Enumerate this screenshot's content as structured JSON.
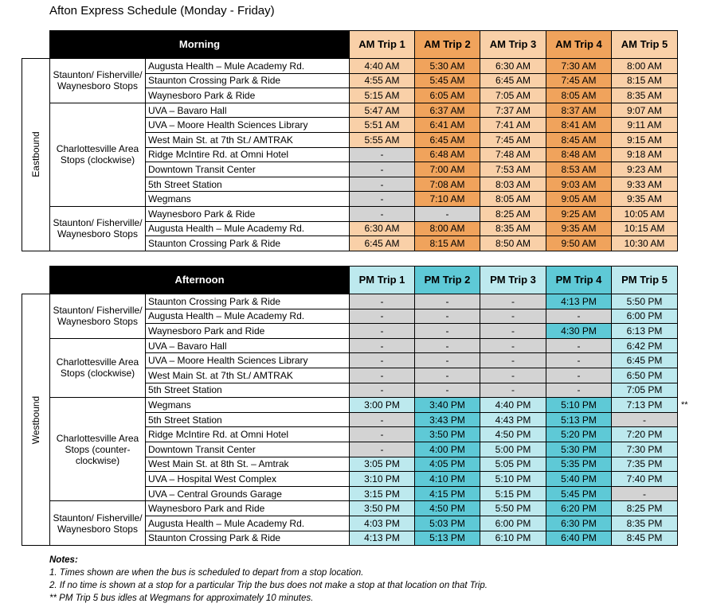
{
  "title": "Afton Express Schedule (Monday - Friday)",
  "tables": [
    {
      "direction": "Eastbound",
      "header": "Morning",
      "trips": [
        "AM Trip 1",
        "AM Trip 2",
        "AM Trip 3",
        "AM Trip 4",
        "AM Trip 5"
      ],
      "groups": [
        {
          "label": "Staunton/ Fisherville/ Waynesboro Stops",
          "rows": [
            {
              "stop": "Augusta Health – Mule Academy Rd.",
              "times": [
                "4:40 AM",
                "5:30 AM",
                "6:30 AM",
                "7:30 AM",
                "8:00 AM"
              ]
            },
            {
              "stop": "Staunton Crossing Park & Ride",
              "times": [
                "4:55 AM",
                "5:45 AM",
                "6:45 AM",
                "7:45 AM",
                "8:15 AM"
              ]
            },
            {
              "stop": "Waynesboro Park & Ride",
              "times": [
                "5:15 AM",
                "6:05 AM",
                "7:05 AM",
                "8:05 AM",
                "8:35 AM"
              ]
            }
          ]
        },
        {
          "label": "Charlottesville Area Stops (clockwise)",
          "rows": [
            {
              "stop": "UVA – Bavaro Hall",
              "times": [
                "5:47 AM",
                "6:37 AM",
                "7:37 AM",
                "8:37 AM",
                "9:07 AM"
              ]
            },
            {
              "stop": "UVA – Moore Health Sciences Library",
              "times": [
                "5:51 AM",
                "6:41 AM",
                "7:41 AM",
                "8:41 AM",
                "9:11 AM"
              ]
            },
            {
              "stop": "West Main St. at 7th St./ AMTRAK",
              "times": [
                "5:55 AM",
                "6:45 AM",
                "7:45 AM",
                "8:45 AM",
                "9:15 AM"
              ]
            },
            {
              "stop": "Ridge McIntire Rd. at Omni Hotel",
              "times": [
                "-",
                "6:48 AM",
                "7:48 AM",
                "8:48 AM",
                "9:18 AM"
              ]
            },
            {
              "stop": "Downtown Transit Center",
              "times": [
                "-",
                "7:00 AM",
                "7:53 AM",
                "8:53 AM",
                "9:23 AM"
              ]
            },
            {
              "stop": "5th Street Station",
              "times": [
                "-",
                "7:08 AM",
                "8:03 AM",
                "9:03 AM",
                "9:33 AM"
              ]
            },
            {
              "stop": "Wegmans",
              "times": [
                "-",
                "7:10 AM",
                "8:05 AM",
                "9:05 AM",
                "9:35 AM"
              ]
            }
          ]
        },
        {
          "label": "Staunton/ Fisherville/ Waynesboro Stops",
          "rows": [
            {
              "stop": "Waynesboro Park & Ride",
              "times": [
                "-",
                "-",
                "8:25 AM",
                "9:25 AM",
                "10:05 AM"
              ]
            },
            {
              "stop": "Augusta Health – Mule Academy Rd.",
              "times": [
                "6:30 AM",
                "8:00 AM",
                "8:35 AM",
                "9:35 AM",
                "10:15 AM"
              ]
            },
            {
              "stop": "Staunton Crossing Park & Ride",
              "times": [
                "6:45 AM",
                "8:15 AM",
                "8:50 AM",
                "9:50 AM",
                "10:30 AM"
              ]
            }
          ]
        }
      ]
    },
    {
      "direction": "Westbound",
      "header": "Afternoon",
      "trips": [
        "PM Trip 1",
        "PM Trip 2",
        "PM Trip 3",
        "PM Trip 4",
        "PM Trip 5"
      ],
      "groups": [
        {
          "label": "Staunton/ Fisherville/ Waynesboro Stops",
          "rows": [
            {
              "stop": "Staunton Crossing Park & Ride",
              "times": [
                "-",
                "-",
                "-",
                "4:13 PM",
                "5:50 PM"
              ]
            },
            {
              "stop": "Augusta Health – Mule Academy Rd.",
              "times": [
                "-",
                "-",
                "-",
                "-",
                "6:00 PM"
              ]
            },
            {
              "stop": "Waynesboro Park and Ride",
              "times": [
                "-",
                "-",
                "-",
                "4:30 PM",
                "6:13 PM"
              ]
            }
          ]
        },
        {
          "label": "Charlottesville Area Stops (clockwise)",
          "rows": [
            {
              "stop": "UVA – Bavaro Hall",
              "times": [
                "-",
                "-",
                "-",
                "-",
                "6:42 PM"
              ]
            },
            {
              "stop": "UVA – Moore Health Sciences Library",
              "times": [
                "-",
                "-",
                "-",
                "-",
                "6:45 PM"
              ]
            },
            {
              "stop": "West Main St. at 7th St./ AMTRAK",
              "times": [
                "-",
                "-",
                "-",
                "-",
                "6:50 PM"
              ]
            },
            {
              "stop": "5th Street Station",
              "times": [
                "-",
                "-",
                "-",
                "-",
                "7:05 PM"
              ]
            }
          ]
        },
        {
          "label": "Charlottesville Area Stops (counter-clockwise)",
          "rows": [
            {
              "stop": "Wegmans",
              "times": [
                "3:00 PM",
                "3:40 PM",
                "4:40 PM",
                "5:10 PM",
                "7:13 PM"
              ],
              "note": "**"
            },
            {
              "stop": "5th Street Station",
              "times": [
                "-",
                "3:43 PM",
                "4:43 PM",
                "5:13 PM",
                "-"
              ]
            },
            {
              "stop": "Ridge McIntire Rd. at Omni Hotel",
              "times": [
                "-",
                "3:50 PM",
                "4:50 PM",
                "5:20 PM",
                "7:20 PM"
              ]
            },
            {
              "stop": "Downtown Transit Center",
              "times": [
                "-",
                "4:00 PM",
                "5:00 PM",
                "5:30 PM",
                "7:30 PM"
              ]
            },
            {
              "stop": "West Main St. at 8th St. – Amtrak",
              "times": [
                "3:05 PM",
                "4:05 PM",
                "5:05 PM",
                "5:35 PM",
                "7:35 PM"
              ]
            },
            {
              "stop": "UVA – Hospital West Complex",
              "times": [
                "3:10 PM",
                "4:10 PM",
                "5:10 PM",
                "5:40 PM",
                "7:40 PM"
              ]
            },
            {
              "stop": "UVA – Central Grounds Garage",
              "times": [
                "3:15 PM",
                "4:15 PM",
                "5:15 PM",
                "5:45 PM",
                "-"
              ]
            }
          ]
        },
        {
          "label": "Staunton/ Fisherville/ Waynesboro Stops",
          "rows": [
            {
              "stop": "Waynesboro Park and Ride",
              "times": [
                "3:50 PM",
                "4:50 PM",
                "5:50 PM",
                "6:20 PM",
                "8:25 PM"
              ]
            },
            {
              "stop": "Augusta Health – Mule Academy Rd.",
              "times": [
                "4:03 PM",
                "5:03 PM",
                "6:00 PM",
                "6:30 PM",
                "8:35 PM"
              ]
            },
            {
              "stop": "Staunton Crossing Park & Ride",
              "times": [
                "4:13 PM",
                "5:13 PM",
                "6:10 PM",
                "6:40 PM",
                "8:45 PM"
              ]
            }
          ]
        }
      ]
    }
  ],
  "notes": {
    "title": "Notes:",
    "items": [
      "1. Times shown are when the bus is scheduled to depart from a stop location.",
      "2. If no time is shown at a stop for a particular Trip the bus does not make a stop at that location on that Trip.",
      "** PM Trip 5 bus idles at Wegmans for approximately 10 minutes."
    ]
  }
}
